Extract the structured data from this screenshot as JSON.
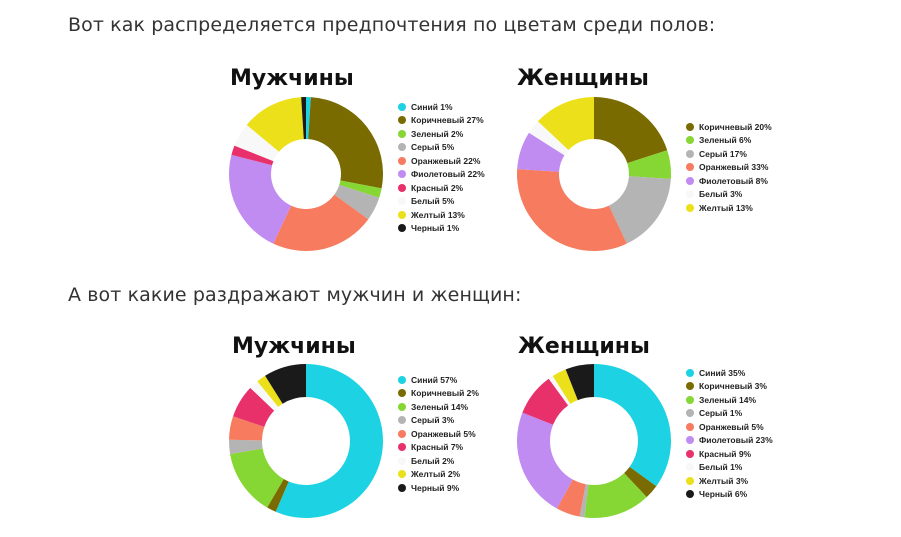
{
  "headings": {
    "preferences": "Вот как распределяется предпочтения по цветам среди полов:",
    "irritations": "А вот какие раздражают мужчин и женщин:"
  },
  "chart_data": [
    {
      "type": "pie",
      "title": "Мужчины",
      "slices": [
        {
          "label": "Синий 1%",
          "value": 1,
          "color": "#1dd3e3"
        },
        {
          "label": "Коричневый 27%",
          "value": 27,
          "color": "#7a6b00"
        },
        {
          "label": "Зеленый 2%",
          "value": 2,
          "color": "#86d634"
        },
        {
          "label": "Серый 5%",
          "value": 5,
          "color": "#b4b4b4"
        },
        {
          "label": "Оранжевый 22%",
          "value": 22,
          "color": "#f77b5e"
        },
        {
          "label": "Фиолетовый 22%",
          "value": 22,
          "color": "#c08cf2"
        },
        {
          "label": "Красный 2%",
          "value": 2,
          "color": "#e8306b"
        },
        {
          "label": "Белый 5%",
          "value": 5,
          "color": "#f8f8f8"
        },
        {
          "label": "Желтый 13%",
          "value": 13,
          "color": "#ece01a"
        },
        {
          "label": "Черный 1%",
          "value": 1,
          "color": "#1a1a1a"
        }
      ]
    },
    {
      "type": "pie",
      "title": "Женщины",
      "slices": [
        {
          "label": "Коричневый 20%",
          "value": 20,
          "color": "#7a6b00"
        },
        {
          "label": "Зеленый 6%",
          "value": 6,
          "color": "#86d634"
        },
        {
          "label": "Серый 17%",
          "value": 17,
          "color": "#b4b4b4"
        },
        {
          "label": "Оранжевый 33%",
          "value": 33,
          "color": "#f77b5e"
        },
        {
          "label": "Фиолетовый 8%",
          "value": 8,
          "color": "#c08cf2"
        },
        {
          "label": "Белый 3%",
          "value": 3,
          "color": "#f8f8f8"
        },
        {
          "label": "Желтый 13%",
          "value": 13,
          "color": "#ece01a"
        }
      ]
    },
    {
      "type": "pie",
      "title": "Мужчины",
      "slices": [
        {
          "label": "Синий 57%",
          "value": 57,
          "color": "#1dd3e3"
        },
        {
          "label": "Коричневый 2%",
          "value": 2,
          "color": "#7a6b00"
        },
        {
          "label": "Зеленый 14%",
          "value": 14,
          "color": "#86d634"
        },
        {
          "label": "Серый 3%",
          "value": 3,
          "color": "#b4b4b4"
        },
        {
          "label": "Оранжевый 5%",
          "value": 5,
          "color": "#f77b5e"
        },
        {
          "label": "Красный 7%",
          "value": 7,
          "color": "#e8306b"
        },
        {
          "label": "Белый 2%",
          "value": 2,
          "color": "#f8f8f8"
        },
        {
          "label": "Желтый 2%",
          "value": 2,
          "color": "#ece01a"
        },
        {
          "label": "Черный 9%",
          "value": 9,
          "color": "#1a1a1a"
        }
      ]
    },
    {
      "type": "pie",
      "title": "Женщины",
      "slices": [
        {
          "label": "Синий 35%",
          "value": 35,
          "color": "#1dd3e3"
        },
        {
          "label": "Коричневый 3%",
          "value": 3,
          "color": "#7a6b00"
        },
        {
          "label": "Зеленый 14%",
          "value": 14,
          "color": "#86d634"
        },
        {
          "label": "Серый 1%",
          "value": 1,
          "color": "#b4b4b4"
        },
        {
          "label": "Оранжевый 5%",
          "value": 5,
          "color": "#f77b5e"
        },
        {
          "label": "Фиолетовый 23%",
          "value": 23,
          "color": "#c08cf2"
        },
        {
          "label": "Красный 9%",
          "value": 9,
          "color": "#e8306b"
        },
        {
          "label": "Белый 1%",
          "value": 1,
          "color": "#f8f8f8"
        },
        {
          "label": "Желтый 3%",
          "value": 3,
          "color": "#ece01a"
        },
        {
          "label": "Черный 6%",
          "value": 6,
          "color": "#1a1a1a"
        }
      ]
    }
  ]
}
